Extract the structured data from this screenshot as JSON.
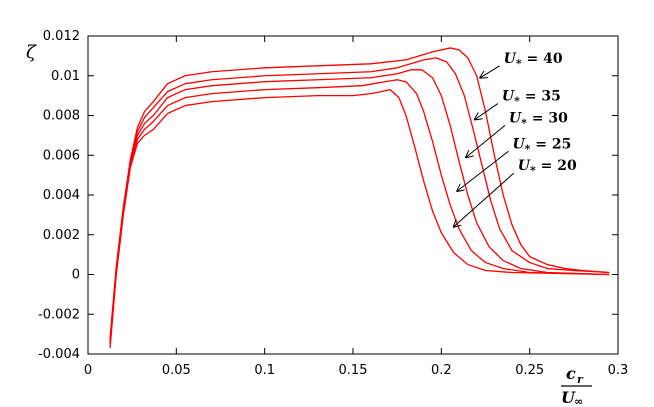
{
  "chart_data": {
    "type": "line",
    "xlim": [
      0,
      0.3
    ],
    "ylim": [
      -0.004,
      0.012
    ],
    "x_ticks": [
      "0",
      "0.05",
      "0.1",
      "0.15",
      "0.2",
      "0.25",
      "0.3"
    ],
    "y_ticks": [
      "-0.004",
      "-0.002",
      "0",
      "0.002",
      "0.004",
      "0.006",
      "0.008",
      "0.01",
      "0.012"
    ],
    "ylabel": "ζ",
    "xlabel_num": "c",
    "xlabel_num_sub": "r",
    "xlabel_den": "U",
    "xlabel_den_sub": "∞",
    "line_color": "#ff0000",
    "grid": false,
    "series": [
      {
        "label": "U* = 40",
        "points": [
          [
            0.0125,
            -0.0032
          ],
          [
            0.016,
            0.0004
          ],
          [
            0.02,
            0.0034
          ],
          [
            0.024,
            0.0058
          ],
          [
            0.028,
            0.0074
          ],
          [
            0.032,
            0.0082
          ],
          [
            0.037,
            0.0087
          ],
          [
            0.045,
            0.0096
          ],
          [
            0.055,
            0.01
          ],
          [
            0.07,
            0.0102
          ],
          [
            0.1,
            0.0104
          ],
          [
            0.13,
            0.0105
          ],
          [
            0.16,
            0.0106
          ],
          [
            0.18,
            0.0108
          ],
          [
            0.195,
            0.0112
          ],
          [
            0.205,
            0.0114
          ],
          [
            0.21,
            0.0113
          ],
          [
            0.215,
            0.0109
          ],
          [
            0.22,
            0.01
          ],
          [
            0.225,
            0.0082
          ],
          [
            0.23,
            0.006
          ],
          [
            0.235,
            0.004
          ],
          [
            0.24,
            0.0025
          ],
          [
            0.245,
            0.0015
          ],
          [
            0.25,
            0.0009
          ],
          [
            0.26,
            0.0005
          ],
          [
            0.27,
            0.0003
          ],
          [
            0.28,
            0.0002
          ],
          [
            0.295,
            0.0001
          ]
        ]
      },
      {
        "label": "U* = 35",
        "points": [
          [
            0.0125,
            -0.0033
          ],
          [
            0.016,
            0.0003
          ],
          [
            0.02,
            0.0033
          ],
          [
            0.024,
            0.0057
          ],
          [
            0.028,
            0.0072
          ],
          [
            0.032,
            0.0079
          ],
          [
            0.037,
            0.0084
          ],
          [
            0.045,
            0.0092
          ],
          [
            0.055,
            0.0096
          ],
          [
            0.07,
            0.0098
          ],
          [
            0.1,
            0.01
          ],
          [
            0.13,
            0.0101
          ],
          [
            0.16,
            0.0102
          ],
          [
            0.175,
            0.0104
          ],
          [
            0.19,
            0.0108
          ],
          [
            0.197,
            0.0109
          ],
          [
            0.203,
            0.0107
          ],
          [
            0.208,
            0.0101
          ],
          [
            0.213,
            0.009
          ],
          [
            0.218,
            0.0073
          ],
          [
            0.223,
            0.0055
          ],
          [
            0.228,
            0.0037
          ],
          [
            0.233,
            0.0023
          ],
          [
            0.24,
            0.0012
          ],
          [
            0.25,
            0.0006
          ],
          [
            0.26,
            0.0003
          ],
          [
            0.275,
            0.0002
          ],
          [
            0.295,
            0.0001
          ]
        ]
      },
      {
        "label": "U* = 30",
        "points": [
          [
            0.0125,
            -0.0034
          ],
          [
            0.016,
            0.0002
          ],
          [
            0.02,
            0.0032
          ],
          [
            0.024,
            0.0056
          ],
          [
            0.028,
            0.007
          ],
          [
            0.032,
            0.0076
          ],
          [
            0.037,
            0.008
          ],
          [
            0.045,
            0.0089
          ],
          [
            0.055,
            0.0093
          ],
          [
            0.07,
            0.0095
          ],
          [
            0.1,
            0.0097
          ],
          [
            0.13,
            0.0098
          ],
          [
            0.16,
            0.0099
          ],
          [
            0.175,
            0.0101
          ],
          [
            0.183,
            0.0103
          ],
          [
            0.189,
            0.0103
          ],
          [
            0.195,
            0.0099
          ],
          [
            0.2,
            0.009
          ],
          [
            0.205,
            0.0075
          ],
          [
            0.21,
            0.0057
          ],
          [
            0.215,
            0.004
          ],
          [
            0.22,
            0.0026
          ],
          [
            0.227,
            0.0014
          ],
          [
            0.235,
            0.0007
          ],
          [
            0.245,
            0.0003
          ],
          [
            0.26,
            0.0001
          ],
          [
            0.295,
            0.0
          ]
        ]
      },
      {
        "label": "U* = 25",
        "points": [
          [
            0.0125,
            -0.0035
          ],
          [
            0.016,
            0.0001
          ],
          [
            0.02,
            0.0031
          ],
          [
            0.024,
            0.0055
          ],
          [
            0.028,
            0.0068
          ],
          [
            0.032,
            0.0073
          ],
          [
            0.037,
            0.0077
          ],
          [
            0.045,
            0.0085
          ],
          [
            0.055,
            0.0089
          ],
          [
            0.07,
            0.0091
          ],
          [
            0.1,
            0.0093
          ],
          [
            0.13,
            0.0094
          ],
          [
            0.155,
            0.0095
          ],
          [
            0.168,
            0.0097
          ],
          [
            0.175,
            0.0098
          ],
          [
            0.18,
            0.0097
          ],
          [
            0.186,
            0.0091
          ],
          [
            0.19,
            0.0082
          ],
          [
            0.195,
            0.0067
          ],
          [
            0.2,
            0.005
          ],
          [
            0.205,
            0.0035
          ],
          [
            0.21,
            0.0023
          ],
          [
            0.217,
            0.0012
          ],
          [
            0.225,
            0.0006
          ],
          [
            0.235,
            0.0003
          ],
          [
            0.25,
            0.0001
          ],
          [
            0.295,
            0.0
          ]
        ]
      },
      {
        "label": "U* = 20",
        "points": [
          [
            0.0125,
            -0.0037
          ],
          [
            0.016,
            0.0
          ],
          [
            0.02,
            0.003
          ],
          [
            0.024,
            0.0054
          ],
          [
            0.028,
            0.0066
          ],
          [
            0.032,
            0.007
          ],
          [
            0.037,
            0.0073
          ],
          [
            0.045,
            0.0081
          ],
          [
            0.055,
            0.0085
          ],
          [
            0.07,
            0.0087
          ],
          [
            0.1,
            0.0089
          ],
          [
            0.13,
            0.009
          ],
          [
            0.15,
            0.009
          ],
          [
            0.16,
            0.0091
          ],
          [
            0.166,
            0.0092
          ],
          [
            0.171,
            0.0093
          ],
          [
            0.176,
            0.0089
          ],
          [
            0.18,
            0.008
          ],
          [
            0.185,
            0.0064
          ],
          [
            0.19,
            0.0047
          ],
          [
            0.195,
            0.0032
          ],
          [
            0.2,
            0.0021
          ],
          [
            0.207,
            0.0011
          ],
          [
            0.215,
            0.0005
          ],
          [
            0.225,
            0.0002
          ],
          [
            0.24,
            0.0001
          ],
          [
            0.295,
            0.0
          ]
        ]
      }
    ],
    "annotations": [
      {
        "text": "U* = 40",
        "prefix": "U",
        "sub": "*",
        "rest": " = 40",
        "arrow_from": [
          0.233,
          0.0105
        ],
        "arrow_to": [
          0.222,
          0.0099
        ]
      },
      {
        "text": "U* = 35",
        "prefix": "U",
        "sub": "*",
        "rest": " = 35",
        "arrow_from": [
          0.232,
          0.0086
        ],
        "arrow_to": [
          0.219,
          0.0078
        ]
      },
      {
        "text": "U* = 30",
        "prefix": "U",
        "sub": "*",
        "rest": " = 30",
        "arrow_from": [
          0.236,
          0.0075
        ],
        "arrow_to": [
          0.214,
          0.0059
        ]
      },
      {
        "text": "U* = 25",
        "prefix": "U",
        "sub": "*",
        "rest": " = 25",
        "arrow_from": [
          0.238,
          0.0062
        ],
        "arrow_to": [
          0.209,
          0.0042
        ]
      },
      {
        "text": "U* = 20",
        "prefix": "U",
        "sub": "*",
        "rest": " = 20",
        "arrow_from": [
          0.241,
          0.0051
        ],
        "arrow_to": [
          0.207,
          0.0024
        ]
      }
    ]
  }
}
